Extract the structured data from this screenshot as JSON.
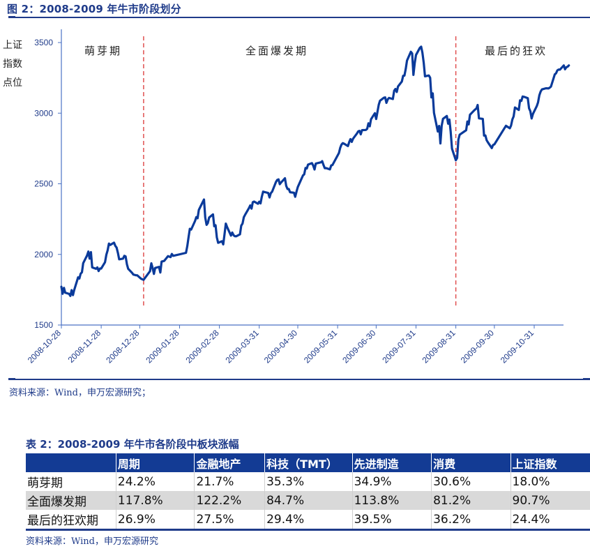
{
  "figure": {
    "title": "图 2：2008-2009 年牛市阶段划分",
    "source": "资料来源：Wind，申万宏源研究；"
  },
  "chart_data": {
    "type": "line",
    "title": "2008-2009 年牛市阶段划分",
    "ylabel": "上证指数点位",
    "ylabel_lines": [
      "上证",
      "指数",
      "点位"
    ],
    "xlabel": "",
    "ylim": [
      1500,
      3500
    ],
    "yticks": [
      1500,
      2000,
      2500,
      3000,
      3500
    ],
    "xlim": [
      "2008-10-28",
      "2009-11-27"
    ],
    "xticks": [
      "2008-10-28",
      "2008-11-28",
      "2008-12-28",
      "2009-01-28",
      "2009-02-28",
      "2009-03-31",
      "2009-04-30",
      "2009-05-31",
      "2009-06-30",
      "2009-07-31",
      "2009-08-31",
      "2009-09-30",
      "2009-10-31"
    ],
    "grid": false,
    "legend": "none",
    "phase_dividers": [
      "2008-12-31",
      "2009-08-31"
    ],
    "phases": [
      {
        "label": "萌芽期",
        "start": "2008-10-28",
        "end": "2008-12-31"
      },
      {
        "label": "全面爆发期",
        "start": "2008-12-31",
        "end": "2009-08-31"
      },
      {
        "label": "最后的狂欢",
        "start": "2009-08-31",
        "end": "2009-11-27"
      }
    ],
    "series": [
      {
        "name": "上证指数",
        "color": "#0a3a9a",
        "points": [
          [
            "2008-10-28",
            1771
          ],
          [
            "2008-10-29",
            1721
          ],
          [
            "2008-10-30",
            1763
          ],
          [
            "2008-10-31",
            1729
          ],
          [
            "2008-11-03",
            1720
          ],
          [
            "2008-11-04",
            1706
          ],
          [
            "2008-11-05",
            1747
          ],
          [
            "2008-11-06",
            1712
          ],
          [
            "2008-11-07",
            1748
          ],
          [
            "2008-11-10",
            1838
          ],
          [
            "2008-11-11",
            1829
          ],
          [
            "2008-11-12",
            1863
          ],
          [
            "2008-11-13",
            1874
          ],
          [
            "2008-11-14",
            1938
          ],
          [
            "2008-11-17",
            1992
          ],
          [
            "2008-11-18",
            2020
          ],
          [
            "2008-11-19",
            1970
          ],
          [
            "2008-11-20",
            2016
          ],
          [
            "2008-11-21",
            1908
          ],
          [
            "2008-11-24",
            1898
          ],
          [
            "2008-11-25",
            1908
          ],
          [
            "2008-11-26",
            1882
          ],
          [
            "2008-11-27",
            1900
          ],
          [
            "2008-11-28",
            1900
          ],
          [
            "2008-12-01",
            1945
          ],
          [
            "2008-12-02",
            1998
          ],
          [
            "2008-12-03",
            2028
          ],
          [
            "2008-12-04",
            2077
          ],
          [
            "2008-12-05",
            2067
          ],
          [
            "2008-12-08",
            2083
          ],
          [
            "2008-12-09",
            2060
          ],
          [
            "2008-12-10",
            2048
          ],
          [
            "2008-12-11",
            2010
          ],
          [
            "2008-12-12",
            1965
          ],
          [
            "2008-12-15",
            1970
          ],
          [
            "2008-12-16",
            1990
          ],
          [
            "2008-12-17",
            1986
          ],
          [
            "2008-12-18",
            1930
          ],
          [
            "2008-12-19",
            1898
          ],
          [
            "2008-12-22",
            1870
          ],
          [
            "2008-12-23",
            1857
          ],
          [
            "2008-12-24",
            1855
          ],
          [
            "2008-12-25",
            1852
          ],
          [
            "2008-12-26",
            1852
          ],
          [
            "2008-12-29",
            1828
          ],
          [
            "2008-12-31",
            1820
          ],
          [
            "2009-01-05",
            1881
          ],
          [
            "2009-01-06",
            1937
          ],
          [
            "2009-01-07",
            1905
          ],
          [
            "2009-01-08",
            1862
          ],
          [
            "2009-01-09",
            1904
          ],
          [
            "2009-01-12",
            1912
          ],
          [
            "2009-01-13",
            1872
          ],
          [
            "2009-01-14",
            1949
          ],
          [
            "2009-01-16",
            1954
          ],
          [
            "2009-01-19",
            1988
          ],
          [
            "2009-01-21",
            1981
          ],
          [
            "2009-01-22",
            2003
          ],
          [
            "2009-01-23",
            1990
          ],
          [
            "2009-02-02",
            2011
          ],
          [
            "2009-02-03",
            2060
          ],
          [
            "2009-02-04",
            2122
          ],
          [
            "2009-02-05",
            2181
          ],
          [
            "2009-02-06",
            2176
          ],
          [
            "2009-02-09",
            2236
          ],
          [
            "2009-02-10",
            2264
          ],
          [
            "2009-02-11",
            2256
          ],
          [
            "2009-02-12",
            2315
          ],
          [
            "2009-02-16",
            2389
          ],
          [
            "2009-02-17",
            2261
          ],
          [
            "2009-02-18",
            2209
          ],
          [
            "2009-02-19",
            2222
          ],
          [
            "2009-02-20",
            2261
          ],
          [
            "2009-02-23",
            2283
          ],
          [
            "2009-02-24",
            2200
          ],
          [
            "2009-02-25",
            2206
          ],
          [
            "2009-02-26",
            2121
          ],
          [
            "2009-02-27",
            2082
          ],
          [
            "2009-03-02",
            2093
          ],
          [
            "2009-03-03",
            2071
          ],
          [
            "2009-03-04",
            2145
          ],
          [
            "2009-03-05",
            2218
          ],
          [
            "2009-03-06",
            2193
          ],
          [
            "2009-03-09",
            2133
          ],
          [
            "2009-03-10",
            2155
          ],
          [
            "2009-03-11",
            2136
          ],
          [
            "2009-03-12",
            2129
          ],
          [
            "2009-03-13",
            2128
          ],
          [
            "2009-03-16",
            2142
          ],
          [
            "2009-03-17",
            2203
          ],
          [
            "2009-03-18",
            2219
          ],
          [
            "2009-03-19",
            2263
          ],
          [
            "2009-03-20",
            2281
          ],
          [
            "2009-03-23",
            2328
          ],
          [
            "2009-03-24",
            2347
          ],
          [
            "2009-03-25",
            2324
          ],
          [
            "2009-03-26",
            2370
          ],
          [
            "2009-03-27",
            2374
          ],
          [
            "2009-03-30",
            2359
          ],
          [
            "2009-03-31",
            2373
          ],
          [
            "2009-04-01",
            2361
          ],
          [
            "2009-04-02",
            2408
          ],
          [
            "2009-04-03",
            2444
          ],
          [
            "2009-04-07",
            2435
          ],
          [
            "2009-04-08",
            2403
          ],
          [
            "2009-04-09",
            2434
          ],
          [
            "2009-04-10",
            2444
          ],
          [
            "2009-04-13",
            2513
          ],
          [
            "2009-04-14",
            2527
          ],
          [
            "2009-04-15",
            2531
          ],
          [
            "2009-04-16",
            2497
          ],
          [
            "2009-04-17",
            2509
          ],
          [
            "2009-04-20",
            2539
          ],
          [
            "2009-04-21",
            2485
          ],
          [
            "2009-04-22",
            2463
          ],
          [
            "2009-04-23",
            2463
          ],
          [
            "2009-04-24",
            2440
          ],
          [
            "2009-04-27",
            2437
          ],
          [
            "2009-04-28",
            2408
          ],
          [
            "2009-04-29",
            2445
          ],
          [
            "2009-04-30",
            2477
          ],
          [
            "2009-05-04",
            2559
          ],
          [
            "2009-05-05",
            2567
          ],
          [
            "2009-05-06",
            2612
          ],
          [
            "2009-05-07",
            2608
          ],
          [
            "2009-05-08",
            2636
          ],
          [
            "2009-05-11",
            2646
          ],
          [
            "2009-05-12",
            2629
          ],
          [
            "2009-05-13",
            2601
          ],
          [
            "2009-05-14",
            2643
          ],
          [
            "2009-05-15",
            2645
          ],
          [
            "2009-05-18",
            2652
          ],
          [
            "2009-05-19",
            2660
          ],
          [
            "2009-05-20",
            2634
          ],
          [
            "2009-05-21",
            2610
          ],
          [
            "2009-05-22",
            2611
          ],
          [
            "2009-05-25",
            2602
          ],
          [
            "2009-05-26",
            2630
          ],
          [
            "2009-05-27",
            2633
          ],
          [
            "2009-06-01",
            2718
          ],
          [
            "2009-06-02",
            2754
          ],
          [
            "2009-06-03",
            2777
          ],
          [
            "2009-06-04",
            2788
          ],
          [
            "2009-06-05",
            2784
          ],
          [
            "2009-06-08",
            2767
          ],
          [
            "2009-06-09",
            2795
          ],
          [
            "2009-06-10",
            2816
          ],
          [
            "2009-06-11",
            2797
          ],
          [
            "2009-06-12",
            2819
          ],
          [
            "2009-06-15",
            2856
          ],
          [
            "2009-06-16",
            2871
          ],
          [
            "2009-06-17",
            2875
          ],
          [
            "2009-06-18",
            2850
          ],
          [
            "2009-06-19",
            2880
          ],
          [
            "2009-06-22",
            2881
          ],
          [
            "2009-06-23",
            2889
          ],
          [
            "2009-06-24",
            2928
          ],
          [
            "2009-06-25",
            2907
          ],
          [
            "2009-06-26",
            2957
          ],
          [
            "2009-06-29",
            3000
          ],
          [
            "2009-06-30",
            2959
          ],
          [
            "2009-07-01",
            3008
          ],
          [
            "2009-07-02",
            3060
          ],
          [
            "2009-07-03",
            3088
          ],
          [
            "2009-07-06",
            3109
          ],
          [
            "2009-07-07",
            3112
          ],
          [
            "2009-07-08",
            3073
          ],
          [
            "2009-07-09",
            3098
          ],
          [
            "2009-07-10",
            3108
          ],
          [
            "2009-07-13",
            3100
          ],
          [
            "2009-07-14",
            3159
          ],
          [
            "2009-07-15",
            3171
          ],
          [
            "2009-07-16",
            3150
          ],
          [
            "2009-07-17",
            3189
          ],
          [
            "2009-07-20",
            3224
          ],
          [
            "2009-07-21",
            3265
          ],
          [
            "2009-07-22",
            3266
          ],
          [
            "2009-07-23",
            3314
          ],
          [
            "2009-07-24",
            3372
          ],
          [
            "2009-07-27",
            3435
          ],
          [
            "2009-07-28",
            3423
          ],
          [
            "2009-07-29",
            3271
          ],
          [
            "2009-07-30",
            3356
          ],
          [
            "2009-07-31",
            3412
          ],
          [
            "2009-08-03",
            3462
          ],
          [
            "2009-08-04",
            3471
          ],
          [
            "2009-08-05",
            3428
          ],
          [
            "2009-08-06",
            3356
          ],
          [
            "2009-08-07",
            3261
          ],
          [
            "2009-08-10",
            3267
          ],
          [
            "2009-08-11",
            3251
          ],
          [
            "2009-08-12",
            3112
          ],
          [
            "2009-08-13",
            3140
          ],
          [
            "2009-08-14",
            3002
          ],
          [
            "2009-08-17",
            2870
          ],
          [
            "2009-08-18",
            2910
          ],
          [
            "2009-08-19",
            2786
          ],
          [
            "2009-08-20",
            2910
          ],
          [
            "2009-08-21",
            2960
          ],
          [
            "2009-08-24",
            2980
          ],
          [
            "2009-08-25",
            2925
          ],
          [
            "2009-08-26",
            2955
          ],
          [
            "2009-08-27",
            2870
          ],
          [
            "2009-08-28",
            2749
          ],
          [
            "2009-08-31",
            2667
          ],
          [
            "2009-09-01",
            2683
          ],
          [
            "2009-09-02",
            2813
          ],
          [
            "2009-09-03",
            2847
          ],
          [
            "2009-09-04",
            2854
          ],
          [
            "2009-09-07",
            2873
          ],
          [
            "2009-09-08",
            2879
          ],
          [
            "2009-09-09",
            2941
          ],
          [
            "2009-09-10",
            2920
          ],
          [
            "2009-09-11",
            2989
          ],
          [
            "2009-09-14",
            3017
          ],
          [
            "2009-09-15",
            3026
          ],
          [
            "2009-09-16",
            3033
          ],
          [
            "2009-09-17",
            3058
          ],
          [
            "2009-09-18",
            2963
          ],
          [
            "2009-09-21",
            2960
          ],
          [
            "2009-09-22",
            2841
          ],
          [
            "2009-09-23",
            2842
          ],
          [
            "2009-09-24",
            2808
          ],
          [
            "2009-09-25",
            2793
          ],
          [
            "2009-09-28",
            2753
          ],
          [
            "2009-09-29",
            2775
          ],
          [
            "2009-09-30",
            2779
          ],
          [
            "2009-10-09",
            2911
          ],
          [
            "2009-10-12",
            2893
          ],
          [
            "2009-10-13",
            2912
          ],
          [
            "2009-10-14",
            2956
          ],
          [
            "2009-10-15",
            2977
          ],
          [
            "2009-10-16",
            3040
          ],
          [
            "2009-10-19",
            3023
          ],
          [
            "2009-10-20",
            3091
          ],
          [
            "2009-10-21",
            3087
          ],
          [
            "2009-10-22",
            3118
          ],
          [
            "2009-10-23",
            3116
          ],
          [
            "2009-10-26",
            3106
          ],
          [
            "2009-10-27",
            3035
          ],
          [
            "2009-10-28",
            3013
          ],
          [
            "2009-10-29",
            2962
          ],
          [
            "2009-10-30",
            2995
          ],
          [
            "2009-11-02",
            3050
          ],
          [
            "2009-11-03",
            3077
          ],
          [
            "2009-11-04",
            3127
          ],
          [
            "2009-11-05",
            3153
          ],
          [
            "2009-11-06",
            3168
          ],
          [
            "2009-11-09",
            3176
          ],
          [
            "2009-11-10",
            3176
          ],
          [
            "2009-11-11",
            3175
          ],
          [
            "2009-11-12",
            3180
          ],
          [
            "2009-11-13",
            3188
          ],
          [
            "2009-11-16",
            3275
          ],
          [
            "2009-11-17",
            3282
          ],
          [
            "2009-11-18",
            3303
          ],
          [
            "2009-11-19",
            3309
          ],
          [
            "2009-11-20",
            3308
          ],
          [
            "2009-11-23",
            3338
          ],
          [
            "2009-11-24",
            3311
          ],
          [
            "2009-11-25",
            3325
          ],
          [
            "2009-11-26",
            3329
          ],
          [
            "2009-11-27",
            3338
          ]
        ]
      }
    ]
  },
  "table": {
    "title": "表 2：2008-2009 年牛市各阶段中板块涨幅",
    "headers": [
      "",
      "周期",
      "金融地产",
      "科技（TMT）",
      "先进制造",
      "消费",
      "上证指数"
    ],
    "rows": [
      [
        "萌芽期",
        "24.2%",
        "21.7%",
        "35.3%",
        "34.9%",
        "30.6%",
        "18.0%"
      ],
      [
        "全面爆发期",
        "117.8%",
        "122.2%",
        "84.7%",
        "113.8%",
        "81.2%",
        "90.7%"
      ],
      [
        "最后的狂欢期",
        "26.9%",
        "27.5%",
        "29.4%",
        "39.5%",
        "36.2%",
        "24.4%"
      ]
    ],
    "source": "资料来源：Wind，申万宏源研究"
  },
  "colors": {
    "brand_blue": "#1f3b8a",
    "table_header": "#133b94",
    "line": "#0a3a9a",
    "axis": "#4a72c4",
    "divider": "#e05050",
    "row_shade": "#d9d9d9"
  }
}
